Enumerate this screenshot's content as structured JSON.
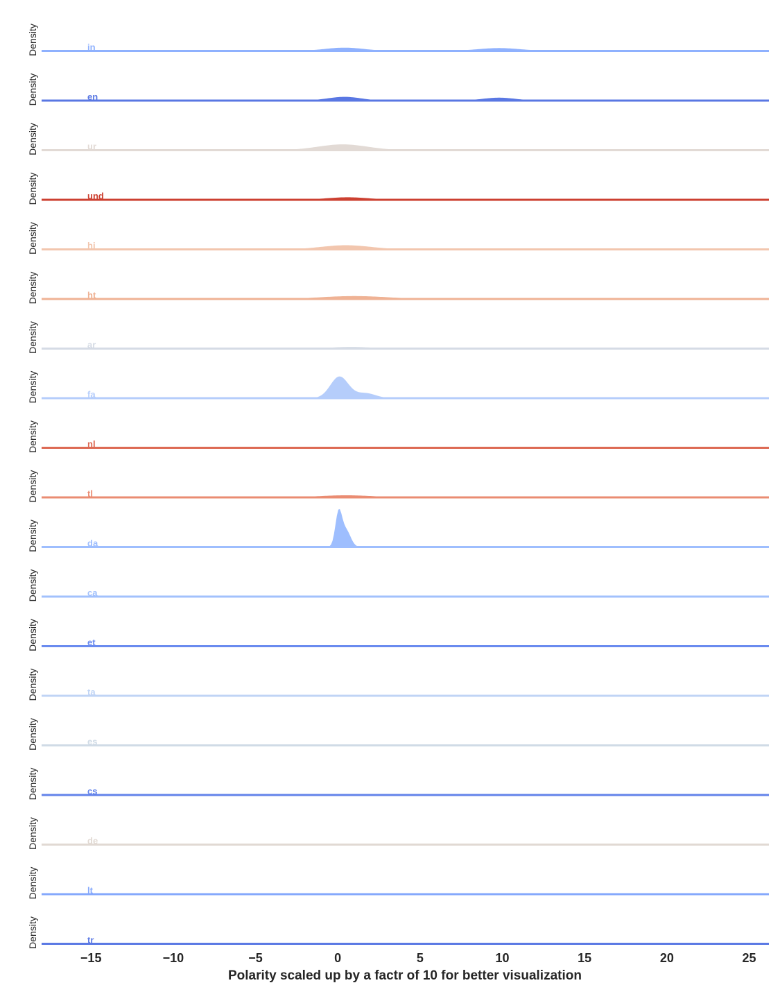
{
  "chart_data": {
    "type": "area",
    "subtype": "ridgeline-density",
    "xlabel": "Polarity scaled up by a factr of 10 for better visualization",
    "ylabel": "Density",
    "xlim": [
      -18,
      26.2
    ],
    "xticks": [
      -15,
      -10,
      -5,
      0,
      5,
      10,
      15,
      20,
      25
    ],
    "xtick_labels": [
      "−15",
      "−10",
      "−5",
      "0",
      "5",
      "10",
      "15",
      "20",
      "25"
    ],
    "grid": false,
    "legend": "none",
    "series": [
      {
        "name": "in",
        "color": "#8fb1fe",
        "peaks": [
          {
            "x": 0.4,
            "sd": 1.2,
            "h": 0.04
          },
          {
            "x": 9.8,
            "sd": 1.3,
            "h": 0.035
          }
        ]
      },
      {
        "name": "en",
        "color": "#5977e3",
        "peaks": [
          {
            "x": 0.4,
            "sd": 1.0,
            "h": 0.045
          },
          {
            "x": 9.8,
            "sd": 1.0,
            "h": 0.035
          }
        ]
      },
      {
        "name": "ur",
        "color": "#e2dad5",
        "peaks": [
          {
            "x": 0.3,
            "sd": 1.5,
            "h": 0.07
          }
        ]
      },
      {
        "name": "und",
        "color": "#cc4031",
        "peaks": [
          {
            "x": 0.6,
            "sd": 1.3,
            "h": 0.03
          },
          {
            "x": 9.5,
            "sd": 1.5,
            "h": 0.008
          }
        ]
      },
      {
        "name": "hi",
        "color": "#f2c6ae",
        "peaks": [
          {
            "x": 0.5,
            "sd": 1.5,
            "h": 0.05
          }
        ]
      },
      {
        "name": "ht",
        "color": "#efb294",
        "peaks": [
          {
            "x": 1.0,
            "sd": 2.0,
            "h": 0.035
          }
        ]
      },
      {
        "name": "ar",
        "color": "#d5dbe5",
        "peaks": [
          {
            "x": 0.8,
            "sd": 1.2,
            "h": 0.02
          }
        ]
      },
      {
        "name": "fa",
        "color": "#b5cdfb",
        "peaks": [
          {
            "x": 0.1,
            "sd": 0.55,
            "h": 0.26
          },
          {
            "x": 1.7,
            "sd": 0.6,
            "h": 0.06
          }
        ]
      },
      {
        "name": "nl",
        "color": "#dd6a54",
        "peaks": []
      },
      {
        "name": "tl",
        "color": "#ea8c72",
        "peaks": [
          {
            "x": 0.5,
            "sd": 1.6,
            "h": 0.025
          },
          {
            "x": 18.0,
            "sd": 1.5,
            "h": 0.004
          }
        ]
      },
      {
        "name": "da",
        "color": "#9ebefe",
        "peaks": [
          {
            "x": 0.05,
            "sd": 0.2,
            "h": 0.4
          },
          {
            "x": 0.5,
            "sd": 0.28,
            "h": 0.2
          }
        ]
      },
      {
        "name": "ca",
        "color": "#a2c1fc",
        "peaks": []
      },
      {
        "name": "et",
        "color": "#6a8bef",
        "peaks": []
      },
      {
        "name": "ta",
        "color": "#c0d4f5",
        "peaks": []
      },
      {
        "name": "es",
        "color": "#d0dbe6",
        "peaks": []
      },
      {
        "name": "cs",
        "color": "#6282ea",
        "peaks": []
      },
      {
        "name": "de",
        "color": "#e1d9d3",
        "peaks": []
      },
      {
        "name": "lt",
        "color": "#85a8fc",
        "peaks": []
      },
      {
        "name": "tr",
        "color": "#5b79e4",
        "peaks": []
      }
    ]
  }
}
